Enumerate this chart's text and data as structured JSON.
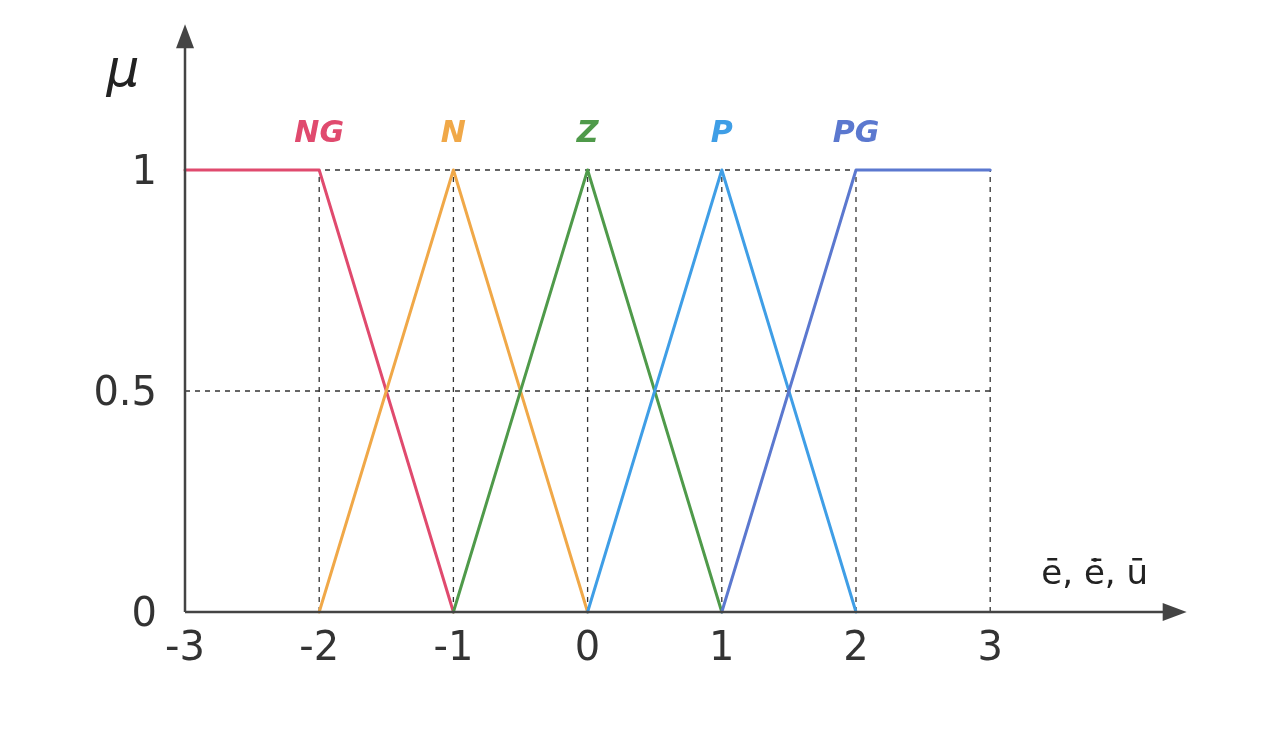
{
  "chart_data": {
    "type": "line",
    "xlabel": "ē, ė̄, ū",
    "ylabel": "μ",
    "xlim": [
      -3,
      4.3
    ],
    "ylim": [
      0,
      1.28
    ],
    "xticks": [
      -3,
      -2,
      -1,
      0,
      1,
      2,
      3
    ],
    "yticks": [
      0,
      0.5,
      1
    ],
    "grid": true,
    "line_style": "solid",
    "marker": "none",
    "series": [
      {
        "name": "NG",
        "color": "#e04a6e",
        "x": [
          -3,
          -2,
          -1
        ],
        "values": [
          1,
          1,
          0
        ]
      },
      {
        "name": "N",
        "color": "#f0a848",
        "x": [
          -2,
          -1,
          0
        ],
        "values": [
          0,
          1,
          0
        ]
      },
      {
        "name": "Z",
        "color": "#4f9a4a",
        "x": [
          -1,
          0,
          1
        ],
        "values": [
          0,
          1,
          0
        ]
      },
      {
        "name": "P",
        "color": "#3f9ee6",
        "x": [
          0,
          1,
          2
        ],
        "values": [
          0,
          1,
          0
        ]
      },
      {
        "name": "PG",
        "color": "#5b78cf",
        "x": [
          1,
          2,
          3
        ],
        "values": [
          0,
          1,
          1
        ]
      }
    ]
  }
}
